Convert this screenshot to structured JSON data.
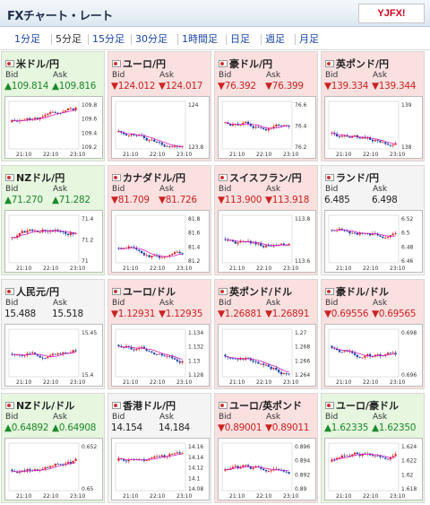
{
  "header": {
    "title": "FXチャート・レート",
    "logo": "YJFX!"
  },
  "tabs": [
    {
      "label": "1分足",
      "active": false
    },
    {
      "label": "5分足",
      "active": true
    },
    {
      "label": "15分足",
      "active": false
    },
    {
      "label": "30分足",
      "active": false
    },
    {
      "label": "1時間足",
      "active": false
    },
    {
      "label": "日足",
      "active": false
    },
    {
      "label": "週足",
      "active": false
    },
    {
      "label": "月足",
      "active": false
    }
  ],
  "labels": {
    "bid": "Bid",
    "ask": "Ask"
  },
  "pairs": [
    {
      "name": "米ドル/円",
      "dir": "up",
      "bid": "109.814",
      "ask": "109.816",
      "y_ticks": [
        "109.8",
        "109.6",
        "109.4",
        "109.2"
      ],
      "x_ticks": [
        "21:10",
        "22:10",
        "23:10"
      ]
    },
    {
      "name": "ユーロ/円",
      "dir": "down",
      "bid": "124.012",
      "ask": "124.017",
      "y_ticks": [
        "124",
        "123.8"
      ],
      "x_ticks": [
        "21:10",
        "22:10",
        "23:10"
      ]
    },
    {
      "name": "豪ドル/円",
      "dir": "down",
      "bid": "76.392",
      "ask": "76.399",
      "y_ticks": [
        "76.6",
        "76.4",
        "76.2"
      ],
      "x_ticks": [
        "21:10",
        "22:10",
        "23:10"
      ]
    },
    {
      "name": "英ポンド/円",
      "dir": "down",
      "bid": "139.334",
      "ask": "139.344",
      "y_ticks": [
        "139",
        "138"
      ],
      "x_ticks": [
        "21:10",
        "22:10",
        "23:10"
      ]
    },
    {
      "name": "NZドル/円",
      "dir": "up",
      "bid": "71.270",
      "ask": "71.282",
      "y_ticks": [
        "71.4",
        "71.2",
        "71"
      ],
      "x_ticks": [
        "21:10",
        "22:10",
        "23:10"
      ]
    },
    {
      "name": "カナダドル/円",
      "dir": "down",
      "bid": "81.709",
      "ask": "81.726",
      "y_ticks": [
        "81.8",
        "81.6",
        "81.4",
        "81.2"
      ],
      "x_ticks": [
        "21:10",
        "22:10",
        "23:10"
      ]
    },
    {
      "name": "スイスフラン/円",
      "dir": "down",
      "bid": "113.900",
      "ask": "113.918",
      "y_ticks": [
        "113.8",
        "113.6"
      ],
      "x_ticks": [
        "21:10",
        "22:10",
        "23:10"
      ]
    },
    {
      "name": "ランド/円",
      "dir": "flat",
      "bid": "6.485",
      "ask": "6.498",
      "y_ticks": [
        "6.52",
        "6.5",
        "6.48",
        "6.46"
      ],
      "x_ticks": [
        "21:10",
        "22:10",
        "23:10"
      ]
    },
    {
      "name": "人民元/円",
      "dir": "flat",
      "bid": "15.488",
      "ask": "15.518",
      "y_ticks": [
        "15.45",
        "15.4"
      ],
      "x_ticks": [
        "21:10",
        "22:10",
        "23:10"
      ]
    },
    {
      "name": "ユーロ/ドル",
      "dir": "down",
      "bid": "1.12931",
      "ask": "1.12935",
      "y_ticks": [
        "1.134",
        "1.132",
        "1.13",
        "1.128"
      ],
      "x_ticks": [
        "21:10",
        "22:10",
        "23:10"
      ]
    },
    {
      "name": "英ポンド/ドル",
      "dir": "down",
      "bid": "1.26881",
      "ask": "1.26891",
      "y_ticks": [
        "1.27",
        "1.268",
        "1.266",
        "1.264"
      ],
      "x_ticks": [
        "21:10",
        "22:10",
        "23:10"
      ]
    },
    {
      "name": "豪ドル/ドル",
      "dir": "down",
      "bid": "0.69556",
      "ask": "0.69565",
      "y_ticks": [
        "0.698",
        "0.696"
      ],
      "x_ticks": [
        "21:10",
        "22:10",
        "23:10"
      ]
    },
    {
      "name": "NZドル/ドル",
      "dir": "up",
      "bid": "0.64892",
      "ask": "0.64908",
      "y_ticks": [
        "0.652",
        "0.65"
      ],
      "x_ticks": [
        "21:10",
        "22:10",
        "23:10"
      ]
    },
    {
      "name": "香港ドル/円",
      "dir": "flat",
      "bid": "14.154",
      "ask": "14.184",
      "y_ticks": [
        "14.16",
        "14.14",
        "14.12",
        "14.1",
        "14.08"
      ],
      "x_ticks": [
        "21:10",
        "22:10",
        "23:10"
      ]
    },
    {
      "name": "ユーロ/英ポンド",
      "dir": "down",
      "bid": "0.89001",
      "ask": "0.89011",
      "y_ticks": [
        "0.896",
        "0.894",
        "0.892",
        "0.89"
      ],
      "x_ticks": [
        "21:10",
        "22:10",
        "23:10"
      ]
    },
    {
      "name": "ユーロ/豪ドル",
      "dir": "up",
      "bid": "1.62335",
      "ask": "1.62350",
      "y_ticks": [
        "1.624",
        "1.622",
        "1.62",
        "1.618"
      ],
      "x_ticks": [
        "21:10",
        "22:10",
        "23:10"
      ]
    }
  ],
  "colors": {
    "up": "#1c8a2a",
    "down": "#cc2222",
    "candle_up": "#e02020",
    "candle_down": "#1a3fa8",
    "ma": "#d020c0"
  }
}
